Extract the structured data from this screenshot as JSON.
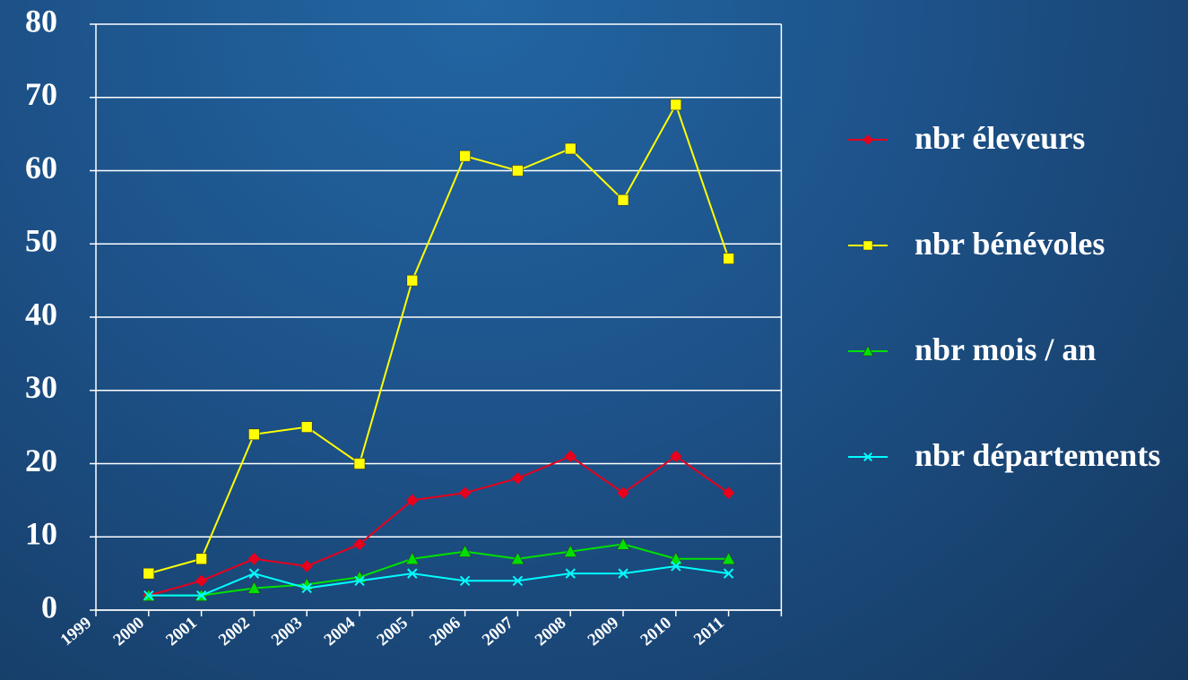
{
  "chart_data": {
    "type": "line",
    "categories": [
      "1999",
      "2000",
      "2001",
      "2002",
      "2003",
      "2004",
      "2005",
      "2006",
      "2007",
      "2008",
      "2009",
      "2010",
      "2011"
    ],
    "series": [
      {
        "name": "nbr éleveurs",
        "color": "#e8001c",
        "marker": "diamond",
        "values": [
          null,
          2,
          4,
          7,
          6,
          9,
          15,
          16,
          18,
          21,
          16,
          21,
          16
        ]
      },
      {
        "name": "nbr bénévoles",
        "color": "#ffff00",
        "marker": "square",
        "values": [
          null,
          5,
          7,
          24,
          25,
          20,
          45,
          62,
          60,
          63,
          56,
          69,
          48
        ]
      },
      {
        "name": "nbr mois / an",
        "color": "#00e000",
        "marker": "triangle",
        "values": [
          null,
          2,
          2,
          3,
          3.5,
          4.5,
          7,
          8,
          7,
          8,
          9,
          7,
          7
        ]
      },
      {
        "name": "nbr départements",
        "color": "#00ffff",
        "marker": "x",
        "values": [
          null,
          2,
          2,
          5,
          3,
          4,
          5,
          4,
          4,
          5,
          5,
          6,
          5
        ]
      }
    ],
    "ylim": [
      0,
      80
    ],
    "yticks": [
      0,
      10,
      20,
      30,
      40,
      50,
      60,
      70,
      80
    ],
    "grid": true,
    "legend": "right"
  }
}
